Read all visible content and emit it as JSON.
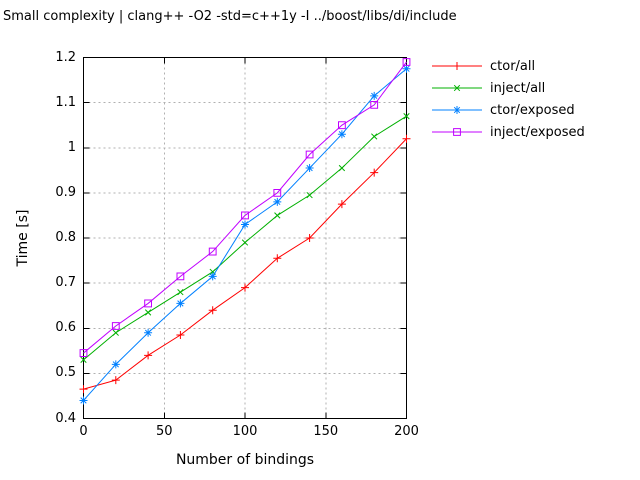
{
  "chart_data": {
    "type": "line",
    "title": "Small complexity | clang++ -O2 -std=c++1y -I ../boost/libs/di/include",
    "xlabel": "Number of bindings",
    "ylabel": "Time [s]",
    "xlim": [
      0,
      200
    ],
    "ylim": [
      0.4,
      1.2
    ],
    "xticks": {
      "values": [
        0,
        50,
        100,
        150,
        200
      ],
      "labels": [
        "0",
        "50",
        "100",
        "150",
        "200"
      ]
    },
    "yticks": {
      "values": [
        0.4,
        0.5,
        0.6,
        0.7,
        0.8,
        0.9,
        1.0,
        1.1,
        1.2
      ],
      "labels": [
        "0.4",
        "0.5",
        "0.6",
        "0.7",
        "0.8",
        "0.9",
        "1",
        "1.1",
        "1.2"
      ]
    },
    "grid": true,
    "legend_position": "outside-right-top",
    "x": [
      0,
      20,
      40,
      60,
      80,
      100,
      120,
      140,
      160,
      180,
      200
    ],
    "series": [
      {
        "name": "ctor/all",
        "color": "#ff0000",
        "marker": "plus",
        "values": [
          0.465,
          0.485,
          0.54,
          0.585,
          0.64,
          0.69,
          0.755,
          0.8,
          0.875,
          0.945,
          1.02
        ]
      },
      {
        "name": "inject/all",
        "color": "#00b000",
        "marker": "cross",
        "values": [
          0.53,
          0.59,
          0.635,
          0.68,
          0.725,
          0.79,
          0.85,
          0.895,
          0.955,
          1.025,
          1.07
        ]
      },
      {
        "name": "ctor/exposed",
        "color": "#0080ff",
        "marker": "asterisk",
        "values": [
          0.44,
          0.52,
          0.59,
          0.655,
          0.715,
          0.83,
          0.88,
          0.955,
          1.03,
          1.115,
          1.175
        ]
      },
      {
        "name": "inject/exposed",
        "color": "#c000ff",
        "marker": "square-open",
        "values": [
          0.545,
          0.605,
          0.655,
          0.715,
          0.77,
          0.85,
          0.9,
          0.985,
          1.05,
          1.095,
          1.19
        ]
      }
    ],
    "colors": {
      "background": "#ffffff",
      "axis": "#000000",
      "grid": "#b0b0b0",
      "text": "#000000"
    }
  }
}
